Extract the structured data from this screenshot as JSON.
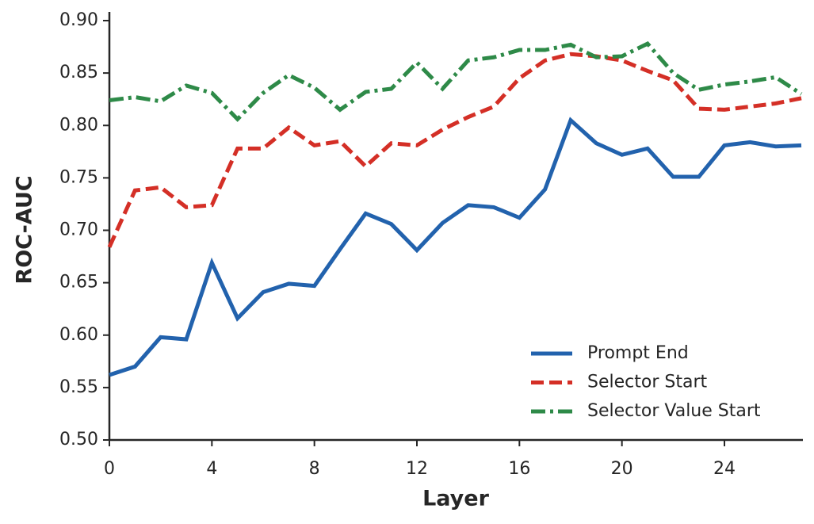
{
  "chart_data": {
    "type": "line",
    "x_label": "Layer",
    "y_label": "ROC-AUC",
    "x": [
      0,
      1,
      2,
      3,
      4,
      5,
      6,
      7,
      8,
      9,
      10,
      11,
      12,
      13,
      14,
      15,
      16,
      17,
      18,
      19,
      20,
      21,
      22,
      23,
      24,
      25,
      26,
      27
    ],
    "series": [
      {
        "name": "Prompt End",
        "color": "#2262ad",
        "linestyle": "solid",
        "values": [
          0.562,
          0.57,
          0.598,
          0.596,
          0.669,
          0.616,
          0.641,
          0.649,
          0.647,
          0.682,
          0.716,
          0.706,
          0.681,
          0.707,
          0.724,
          0.722,
          0.712,
          0.739,
          0.805,
          0.783,
          0.772,
          0.778,
          0.751,
          0.751,
          0.781,
          0.784,
          0.78,
          0.781
        ]
      },
      {
        "name": "Selector Start",
        "color": "#d42f26",
        "linestyle": "dashed",
        "values": [
          0.684,
          0.738,
          0.741,
          0.722,
          0.724,
          0.778,
          0.778,
          0.798,
          0.781,
          0.785,
          0.761,
          0.783,
          0.781,
          0.796,
          0.808,
          0.818,
          0.845,
          0.862,
          0.868,
          0.866,
          0.862,
          0.852,
          0.843,
          0.816,
          0.815,
          0.818,
          0.821,
          0.826
        ]
      },
      {
        "name": "Selector Value Start",
        "color": "#2e8a48",
        "linestyle": "dashdot",
        "values": [
          0.824,
          0.827,
          0.823,
          0.838,
          0.831,
          0.806,
          0.831,
          0.848,
          0.836,
          0.815,
          0.832,
          0.835,
          0.86,
          0.835,
          0.862,
          0.865,
          0.872,
          0.872,
          0.877,
          0.865,
          0.866,
          0.878,
          0.85,
          0.834,
          0.839,
          0.842,
          0.846,
          0.83
        ]
      }
    ],
    "xlim": [
      0,
      27
    ],
    "xticks": [
      0,
      4,
      8,
      12,
      16,
      20,
      24
    ],
    "ylim": [
      0.5,
      0.9
    ],
    "yticks": [
      {
        "value": 0.5,
        "label": "0.50"
      },
      {
        "value": 0.55,
        "label": "0.55"
      },
      {
        "value": 0.6,
        "label": "0.60"
      },
      {
        "value": 0.65,
        "label": "0.65"
      },
      {
        "value": 0.7,
        "label": "0.70"
      },
      {
        "value": 0.75,
        "label": "0.75"
      },
      {
        "value": 0.8,
        "label": "0.80"
      },
      {
        "value": 0.85,
        "label": "0.85"
      },
      {
        "value": 0.9,
        "label": "0.90"
      }
    ],
    "legend": "lower right"
  }
}
